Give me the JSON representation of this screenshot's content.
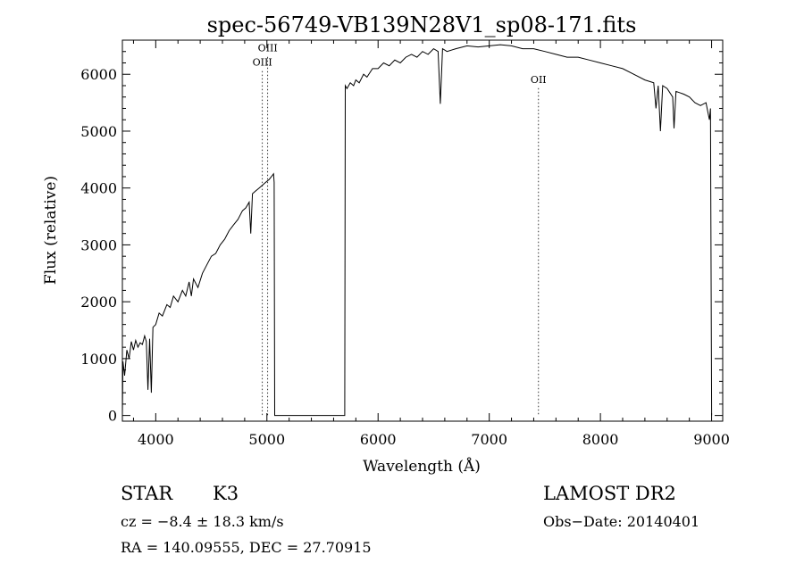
{
  "chart_data": {
    "type": "line",
    "title": "spec-56749-VB139N28V1_sp08-171.fits",
    "xlabel": "Wavelength (Å)",
    "ylabel": "Flux (relative)",
    "xlim": [
      3700,
      9100
    ],
    "ylim": [
      -100,
      6600
    ],
    "xticks": [
      4000,
      5000,
      6000,
      7000,
      8000,
      9000
    ],
    "yticks": [
      0,
      1000,
      2000,
      3000,
      4000,
      5000,
      6000
    ],
    "grid": false,
    "series": [
      {
        "points": [
          [
            3700,
            0
          ],
          [
            3705,
            950
          ],
          [
            3720,
            700
          ],
          [
            3740,
            1150
          ],
          [
            3760,
            1000
          ],
          [
            3780,
            1300
          ],
          [
            3800,
            1150
          ],
          [
            3820,
            1320
          ],
          [
            3840,
            1200
          ],
          [
            3860,
            1280
          ],
          [
            3880,
            1250
          ],
          [
            3900,
            1400
          ],
          [
            3915,
            1300
          ],
          [
            3930,
            450
          ],
          [
            3945,
            1350
          ],
          [
            3960,
            400
          ],
          [
            3975,
            1550
          ],
          [
            4000,
            1600
          ],
          [
            4030,
            1800
          ],
          [
            4060,
            1750
          ],
          [
            4100,
            1950
          ],
          [
            4130,
            1900
          ],
          [
            4160,
            2100
          ],
          [
            4200,
            2000
          ],
          [
            4240,
            2200
          ],
          [
            4270,
            2100
          ],
          [
            4300,
            2350
          ],
          [
            4320,
            2100
          ],
          [
            4340,
            2400
          ],
          [
            4380,
            2250
          ],
          [
            4420,
            2500
          ],
          [
            4460,
            2650
          ],
          [
            4500,
            2800
          ],
          [
            4540,
            2850
          ],
          [
            4580,
            3000
          ],
          [
            4620,
            3100
          ],
          [
            4660,
            3250
          ],
          [
            4700,
            3350
          ],
          [
            4740,
            3450
          ],
          [
            4780,
            3600
          ],
          [
            4810,
            3650
          ],
          [
            4840,
            3750
          ],
          [
            4855,
            3200
          ],
          [
            4870,
            3900
          ],
          [
            4900,
            3950
          ],
          [
            4930,
            4000
          ],
          [
            4960,
            4050
          ],
          [
            4990,
            4100
          ],
          [
            5020,
            4150
          ],
          [
            5040,
            4200
          ],
          [
            5060,
            4250
          ],
          [
            5065,
            4100
          ],
          [
            5070,
            0
          ],
          [
            5700,
            0
          ],
          [
            5705,
            5800
          ],
          [
            5720,
            5750
          ],
          [
            5750,
            5850
          ],
          [
            5780,
            5800
          ],
          [
            5800,
            5900
          ],
          [
            5830,
            5850
          ],
          [
            5870,
            6000
          ],
          [
            5900,
            5950
          ],
          [
            5950,
            6100
          ],
          [
            6000,
            6100
          ],
          [
            6050,
            6200
          ],
          [
            6100,
            6150
          ],
          [
            6150,
            6250
          ],
          [
            6200,
            6200
          ],
          [
            6250,
            6300
          ],
          [
            6300,
            6350
          ],
          [
            6350,
            6300
          ],
          [
            6400,
            6400
          ],
          [
            6450,
            6350
          ],
          [
            6500,
            6450
          ],
          [
            6540,
            6400
          ],
          [
            6560,
            5480
          ],
          [
            6580,
            6450
          ],
          [
            6620,
            6400
          ],
          [
            6700,
            6450
          ],
          [
            6800,
            6500
          ],
          [
            6900,
            6480
          ],
          [
            7000,
            6500
          ],
          [
            7100,
            6520
          ],
          [
            7200,
            6500
          ],
          [
            7300,
            6450
          ],
          [
            7400,
            6450
          ],
          [
            7500,
            6400
          ],
          [
            7600,
            6350
          ],
          [
            7700,
            6300
          ],
          [
            7800,
            6300
          ],
          [
            7900,
            6250
          ],
          [
            8000,
            6200
          ],
          [
            8100,
            6150
          ],
          [
            8200,
            6100
          ],
          [
            8300,
            6000
          ],
          [
            8400,
            5900
          ],
          [
            8480,
            5850
          ],
          [
            8500,
            5400
          ],
          [
            8520,
            5800
          ],
          [
            8540,
            5000
          ],
          [
            8560,
            5800
          ],
          [
            8600,
            5750
          ],
          [
            8650,
            5600
          ],
          [
            8662,
            5050
          ],
          [
            8680,
            5700
          ],
          [
            8750,
            5650
          ],
          [
            8800,
            5600
          ],
          [
            8850,
            5500
          ],
          [
            8900,
            5450
          ],
          [
            8950,
            5500
          ],
          [
            8980,
            5200
          ],
          [
            8990,
            5400
          ],
          [
            9000,
            0
          ]
        ]
      }
    ],
    "annotations": [
      {
        "label": "OIII",
        "x": 5007,
        "y_label": 6400
      },
      {
        "label": "OIII",
        "x": 4959,
        "y_label": 6150
      },
      {
        "label": "OII",
        "x": 7443,
        "y_label": 5850
      }
    ]
  },
  "info": {
    "object_class": "STAR",
    "subclass": "K3",
    "survey": "LAMOST DR2",
    "redshift": "cz = −8.4 ± 18.3 km/s",
    "obs_date": "Obs−Date: 20140401",
    "coords": "RA = 140.09555, DEC =  27.70915"
  }
}
